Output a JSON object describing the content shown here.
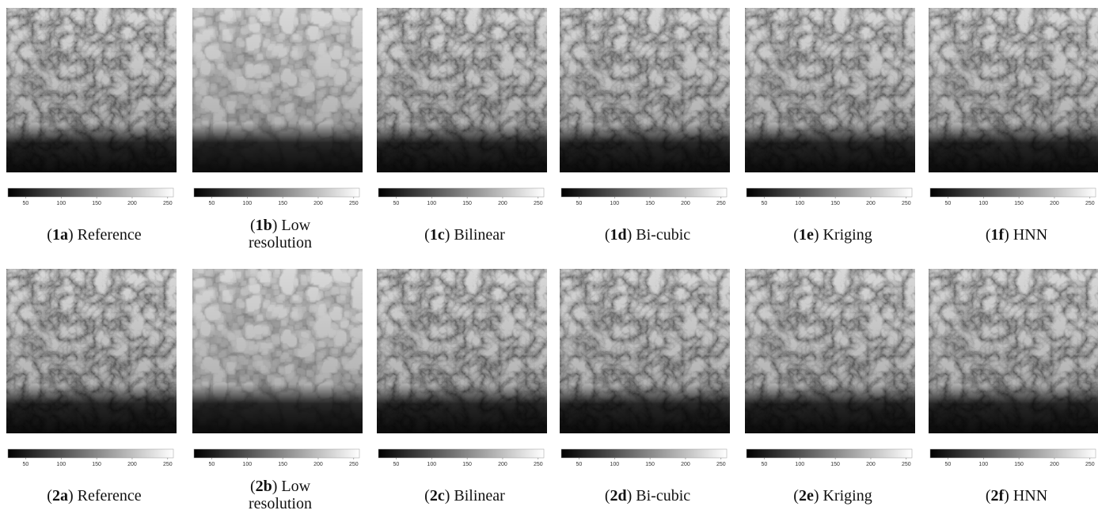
{
  "colorbar": {
    "lim": [
      25,
      258
    ],
    "ticks": [
      50,
      100,
      150,
      200,
      250
    ]
  },
  "panels": [
    {
      "before": "(",
      "bold": "1a",
      "after": ") Reference"
    },
    {
      "before": "(",
      "bold": "1b",
      "after": ") Low resolution"
    },
    {
      "before": "(",
      "bold": "1c",
      "after": ") Bilinear"
    },
    {
      "before": "(",
      "bold": "1d",
      "after": ") Bi-cubic"
    },
    {
      "before": "(",
      "bold": "1e",
      "after": ") Kriging"
    },
    {
      "before": "(",
      "bold": "1f",
      "after": ") HNN"
    },
    {
      "before": "(",
      "bold": "2a",
      "after": ") Reference"
    },
    {
      "before": "(",
      "bold": "2b",
      "after": ") Low resolution"
    },
    {
      "before": "(",
      "bold": "2c",
      "after": ") Bilinear"
    },
    {
      "before": "(",
      "bold": "2d",
      "after": ") Bi-cubic"
    },
    {
      "before": "(",
      "bold": "2e",
      "after": ") Kriging"
    },
    {
      "before": "(",
      "bold": "2f",
      "after": ") HNN"
    }
  ]
}
